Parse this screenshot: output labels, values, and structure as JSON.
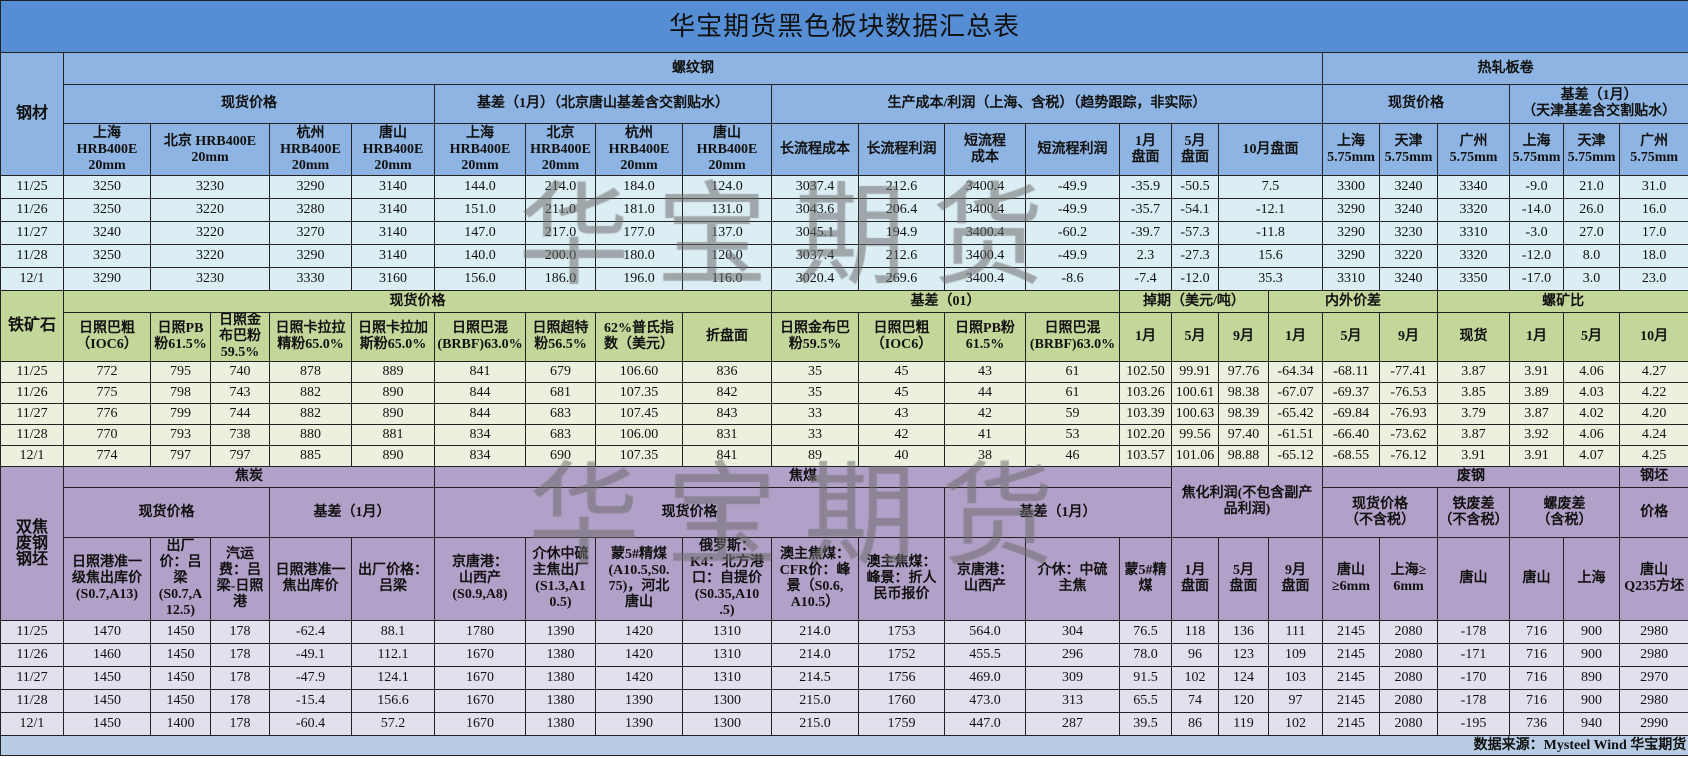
{
  "title": "华宝期货黑色板块数据汇总表",
  "watermark": "华宝期货",
  "footer": "数据来源：Mysteel Wind 华宝期货",
  "colors": {
    "title_bg": "#558ed5",
    "rebar_header": "#8db4e2",
    "rebar_row": "#dbeef4",
    "ore_header": "#c4d79b",
    "ore_row": "#ebf1de",
    "coke_header": "#b1a0c7",
    "coke_row": "#e4dfec",
    "footer_bg": "#b8cce4"
  },
  "rebar": {
    "label": "钢材",
    "group_rebar": "螺纹钢",
    "group_hrc": "热轧板卷",
    "spot": "现货价格",
    "basis": "基差（1月）（北京唐山基差含交割贴水）",
    "cost": "生产成本/利润（上海、含税）（趋势跟踪，非实际）",
    "hrc_spot": "现货价格",
    "hrc_basis": "基差（1月）\n（天津基差含交割贴水）",
    "columns": [
      "上海\nHRB400E\n20mm",
      "北京 HRB400E\n20mm",
      "杭州\nHRB400E\n20mm",
      "唐山\nHRB400E\n20mm",
      "上海\nHRB400E\n20mm",
      "北京\nHRB400E\n20mm",
      "杭州\nHRB400E\n20mm",
      "唐山\nHRB400E\n20mm",
      "长流程成本",
      "长流程利润",
      "短流程\n成本",
      "短流程利润",
      "1月\n盘面",
      "5月\n盘面",
      "10月盘面",
      "上海\n5.75mm",
      "天津\n5.75mm",
      "广州\n5.75mm",
      "上海\n5.75mm",
      "天津\n5.75mm",
      "广州\n5.75mm"
    ],
    "rows": [
      {
        "date": "11/25",
        "values": [
          "3250",
          "3230",
          "3290",
          "3140",
          "144.0",
          "214.0",
          "184.0",
          "124.0",
          "3037.4",
          "212.6",
          "3400.4",
          "-49.9",
          "-35.9",
          "-50.5",
          "7.5",
          "3300",
          "3240",
          "3340",
          "-9.0",
          "21.0",
          "31.0"
        ]
      },
      {
        "date": "11/26",
        "values": [
          "3250",
          "3220",
          "3280",
          "3140",
          "151.0",
          "211.0",
          "181.0",
          "131.0",
          "3043.6",
          "206.4",
          "3400.4",
          "-49.9",
          "-35.7",
          "-54.1",
          "-12.1",
          "3290",
          "3240",
          "3320",
          "-14.0",
          "26.0",
          "16.0"
        ]
      },
      {
        "date": "11/27",
        "values": [
          "3240",
          "3220",
          "3270",
          "3140",
          "147.0",
          "217.0",
          "177.0",
          "137.0",
          "3045.1",
          "194.9",
          "3400.4",
          "-60.2",
          "-39.7",
          "-57.3",
          "-11.8",
          "3290",
          "3230",
          "3310",
          "-3.0",
          "27.0",
          "17.0"
        ]
      },
      {
        "date": "11/28",
        "values": [
          "3250",
          "3220",
          "3290",
          "3140",
          "140.0",
          "200.0",
          "180.0",
          "120.0",
          "3037.4",
          "212.6",
          "3400.4",
          "-49.9",
          "2.3",
          "-27.3",
          "15.6",
          "3290",
          "3220",
          "3320",
          "-12.0",
          "8.0",
          "18.0"
        ]
      },
      {
        "date": "12/1",
        "values": [
          "3290",
          "3230",
          "3330",
          "3160",
          "156.0",
          "186.0",
          "196.0",
          "116.0",
          "3020.4",
          "269.6",
          "3400.4",
          "-8.6",
          "-7.4",
          "-12.0",
          "35.3",
          "3310",
          "3240",
          "3350",
          "-17.0",
          "3.0",
          "23.0"
        ]
      }
    ]
  },
  "ore": {
    "label": "铁矿石",
    "spot": "现货价格",
    "basis": "基差（01）",
    "swap": "掉期（美元/吨）",
    "spread": "内外价差",
    "ratio": "螺矿比",
    "columns": [
      "日照巴粗\n（IOC6）",
      "日照PB\n粉61.5%",
      "日照金\n布巴粉\n59.5%",
      "日照卡拉拉\n精粉65.0%",
      "日照卡拉加\n斯粉65.0%",
      "日照巴混\n(BRBF)63.0%",
      "日照超特\n粉56.5%",
      "62%普氏指\n数（美元）",
      "折盘面",
      "日照金布巴\n粉59.5%",
      "日照巴粗\n（IOC6）",
      "日照PB粉\n61.5%",
      "日照巴混\n(BRBF)63.0%",
      "1月",
      "5月",
      "9月",
      "1月",
      "5月",
      "9月",
      "现货",
      "1月",
      "5月",
      "10月"
    ],
    "rows": [
      {
        "date": "11/25",
        "values": [
          "772",
          "795",
          "740",
          "878",
          "889",
          "841",
          "679",
          "106.60",
          "836",
          "35",
          "45",
          "43",
          "61",
          "102.50",
          "99.91",
          "97.76",
          "-64.34",
          "-68.11",
          "-77.41",
          "3.87",
          "3.91",
          "4.06",
          "4.27"
        ]
      },
      {
        "date": "11/26",
        "values": [
          "775",
          "798",
          "743",
          "882",
          "890",
          "844",
          "681",
          "107.35",
          "842",
          "35",
          "45",
          "44",
          "61",
          "103.26",
          "100.61",
          "98.38",
          "-67.07",
          "-69.37",
          "-76.53",
          "3.85",
          "3.89",
          "4.03",
          "4.22"
        ]
      },
      {
        "date": "11/27",
        "values": [
          "776",
          "799",
          "744",
          "882",
          "890",
          "844",
          "683",
          "107.45",
          "843",
          "33",
          "43",
          "42",
          "59",
          "103.39",
          "100.63",
          "98.39",
          "-65.42",
          "-69.84",
          "-76.93",
          "3.79",
          "3.87",
          "4.02",
          "4.20"
        ]
      },
      {
        "date": "11/28",
        "values": [
          "770",
          "793",
          "738",
          "880",
          "881",
          "834",
          "683",
          "106.00",
          "831",
          "33",
          "42",
          "41",
          "53",
          "102.20",
          "99.56",
          "97.40",
          "-61.51",
          "-66.40",
          "-73.62",
          "3.87",
          "3.92",
          "4.06",
          "4.24"
        ]
      },
      {
        "date": "12/1",
        "values": [
          "774",
          "797",
          "797",
          "885",
          "890",
          "834",
          "690",
          "107.35",
          "841",
          "89",
          "40",
          "38",
          "46",
          "103.57",
          "101.06",
          "98.88",
          "-65.12",
          "-68.55",
          "-76.12",
          "3.91",
          "3.91",
          "4.07",
          "4.25"
        ]
      }
    ]
  },
  "coke": {
    "label": "双焦\n废钢\n钢坯",
    "group_coke": "焦炭",
    "group_coal": "焦煤",
    "coking_profit": "焦化利润(不包含副产\n品利润)",
    "group_scrap": "废钢",
    "group_billet": "钢坯",
    "coke_spot": "现货价格",
    "coke_basis": "基差（1月）",
    "coal_spot": "现货价格",
    "coal_basis": "基差（1月）",
    "scrap_spot": "现货价格\n（不含税）",
    "iron_scrap_spread": "铁废差\n（不含税）",
    "rebar_scrap_spread": "螺废差\n（含税）",
    "billet_price": "价格",
    "columns": [
      "日照港准一\n级焦出库价\n(S0.7,A13)",
      "出厂\n价：吕\n梁\n(S0.7,A\n12.5)",
      "汽运\n费：吕\n梁-日照\n港",
      "日照港准一\n焦出库价",
      "出厂价格：\n吕梁",
      "京唐港：\n山西产\n(S0.9,A8)",
      "介休中硫\n主焦出厂\n(S1.3,A1\n0.5)",
      "蒙5#精煤\n(A10.5,S0.\n75)，河北\n唐山",
      "俄罗斯：\nK4：北方港\n口：自提价\n(S0.35,A10\n.5)",
      "澳主焦煤：\nCFR价：峰\n景（S0.6,\nA10.5）",
      "澳主焦煤：\n峰景：折人\n民币报价",
      "京唐港：\n山西产",
      "介休：中硫\n主焦",
      "蒙5#精\n煤",
      "1月\n盘面",
      "5月\n盘面",
      "9月\n盘面",
      "唐山\n≥6mm",
      "上海≥\n6mm",
      "唐山",
      "唐山",
      "上海",
      "唐山\nQ235方坯"
    ],
    "rows": [
      {
        "date": "11/25",
        "values": [
          "1470",
          "1450",
          "178",
          "-62.4",
          "88.1",
          "1780",
          "1390",
          "1420",
          "1310",
          "214.0",
          "1753",
          "564.0",
          "304",
          "76.5",
          "118",
          "136",
          "111",
          "2145",
          "2080",
          "-178",
          "716",
          "900",
          "2980"
        ]
      },
      {
        "date": "11/26",
        "values": [
          "1460",
          "1450",
          "178",
          "-49.1",
          "112.1",
          "1670",
          "1380",
          "1420",
          "1310",
          "214.0",
          "1752",
          "455.5",
          "296",
          "78.0",
          "96",
          "123",
          "109",
          "2145",
          "2080",
          "-171",
          "716",
          "900",
          "2980"
        ]
      },
      {
        "date": "11/27",
        "values": [
          "1450",
          "1450",
          "178",
          "-47.9",
          "124.1",
          "1670",
          "1380",
          "1420",
          "1310",
          "214.5",
          "1756",
          "469.0",
          "309",
          "91.5",
          "102",
          "124",
          "103",
          "2145",
          "2080",
          "-170",
          "716",
          "890",
          "2970"
        ]
      },
      {
        "date": "11/28",
        "values": [
          "1450",
          "1450",
          "178",
          "-15.4",
          "156.6",
          "1670",
          "1380",
          "1390",
          "1300",
          "215.0",
          "1760",
          "473.0",
          "313",
          "65.5",
          "74",
          "120",
          "97",
          "2145",
          "2080",
          "-178",
          "716",
          "900",
          "2980"
        ]
      },
      {
        "date": "12/1",
        "values": [
          "1450",
          "1400",
          "178",
          "-60.4",
          "57.2",
          "1670",
          "1380",
          "1390",
          "1300",
          "215.0",
          "1759",
          "447.0",
          "287",
          "39.5",
          "86",
          "119",
          "102",
          "2145",
          "2080",
          "-195",
          "736",
          "940",
          "2990"
        ]
      }
    ]
  }
}
